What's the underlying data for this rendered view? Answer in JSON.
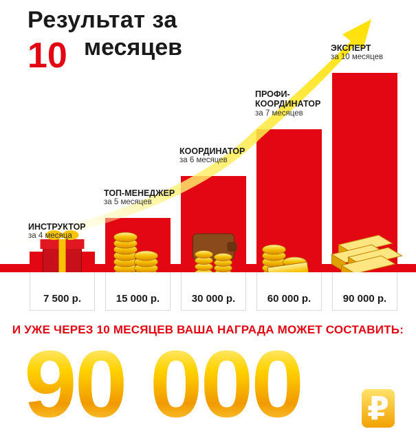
{
  "title": {
    "line1": "Результат за",
    "number": "10",
    "line2": "месяцев"
  },
  "chart_data": {
    "type": "bar",
    "categories": [
      "ИНСТРУКТОР",
      "ТОП-МЕНЕДЖЕР",
      "КООРДИНАТОР",
      "ПРОФИ-\nКООРДИНАТОР",
      "ЭКСПЕРТ"
    ],
    "durations": [
      "за 4 месяца",
      "за 5 месяцев",
      "за 6 месяцев",
      "за 7 месяцев",
      "за 10 месяцев"
    ],
    "values": [
      7500,
      15000,
      30000,
      60000,
      90000
    ],
    "value_labels": [
      "7 500 р.",
      "15 000 р.",
      "30 000 р.",
      "60 000 р.",
      "90 000 р."
    ],
    "bar_color": "#e30613",
    "arrow_color": "#ffe000",
    "icons": [
      "gift-icon",
      "coins-icon",
      "wallet-icon",
      "gold-coins-icon",
      "gold-bars-icon"
    ]
  },
  "headline": "И УЖЕ ЧЕРЕЗ 10 МЕСЯЦЕВ ВАША НАГРАДА МОЖЕТ СОСТАВИТЬ:",
  "big_amount": "90 000",
  "currency_symbol": "₽"
}
